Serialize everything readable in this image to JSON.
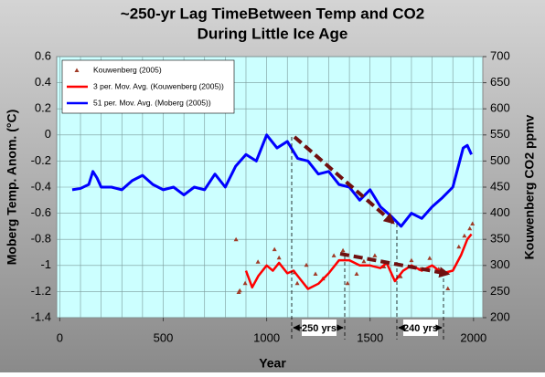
{
  "chart_data": {
    "type": "line",
    "title": [
      "~250-yr Lag TimeBetween Temp and CO2",
      "During Little Ice Age"
    ],
    "x_label": "Year",
    "y_label": "Moberg Temp. Anom. (°C)",
    "y2_label": "Kouwenberg CO2 ppmv",
    "xlim": [
      -15,
      2045
    ],
    "xticks": [
      0,
      500,
      1000,
      1500,
      2000
    ],
    "x_gridlines": [
      0,
      100,
      200,
      300,
      400,
      500,
      600,
      700,
      800,
      900,
      1000,
      1100,
      1200,
      1300,
      1400,
      1500,
      1600,
      1700,
      1800,
      1900,
      2000
    ],
    "ylim": [
      -1.4,
      0.6
    ],
    "yticks": [
      0.6,
      0.4,
      0.2,
      0,
      -0.2,
      -0.4,
      -0.6,
      -0.8,
      -1,
      -1.2,
      -1.4
    ],
    "y2lim": [
      200,
      700
    ],
    "y2ticks": [
      700,
      650,
      600,
      550,
      500,
      450,
      400,
      350,
      300,
      250,
      200
    ],
    "grid": true,
    "legend": "upper left",
    "annotations": [
      "250 yrs",
      "240 yrs"
    ],
    "series": [
      {
        "name": "Kouwenberg (2005)",
        "style": "markers",
        "color": "#a03c28",
        "axis": "y2",
        "x": [
          852,
          865,
          870,
          896,
          958,
          1038,
          1060,
          1135,
          1148,
          1192,
          1236,
          1272,
          1325,
          1369,
          1391,
          1435,
          1470,
          1523,
          1567,
          1647,
          1700,
          1744,
          1788,
          1832,
          1876,
          1929,
          1956,
          1982,
          1995
        ],
        "values": [
          350,
          249,
          252,
          266,
          307,
          331,
          315,
          287,
          266,
          301,
          284,
          275,
          319,
          329,
          266,
          284,
          308,
          319,
          298,
          279,
          310,
          293,
          314,
          293,
          256,
          336,
          357,
          371,
          380
        ]
      },
      {
        "name": "3 per. Mov. Avg. (Kouwenberg (2005))",
        "style": "line",
        "color": "#ff0000",
        "axis": "y2",
        "x": [
          900,
          930,
          960,
          1000,
          1030,
          1060,
          1100,
          1130,
          1160,
          1200,
          1250,
          1300,
          1350,
          1400,
          1450,
          1500,
          1550,
          1580,
          1620,
          1660,
          1700,
          1750,
          1800,
          1850,
          1900,
          1940,
          1970,
          1990
        ],
        "values": [
          290,
          258,
          280,
          300,
          290,
          305,
          285,
          290,
          275,
          255,
          265,
          285,
          310,
          310,
          300,
          300,
          295,
          305,
          270,
          290,
          300,
          290,
          300,
          285,
          290,
          320,
          350,
          360
        ]
      },
      {
        "name": "51 per. Mov. Avg. (Moberg (2005))",
        "style": "line",
        "color": "#0000ff",
        "axis": "y",
        "x": [
          60,
          100,
          140,
          160,
          180,
          200,
          250,
          300,
          350,
          400,
          450,
          500,
          550,
          600,
          650,
          700,
          750,
          800,
          850,
          900,
          950,
          1000,
          1050,
          1100,
          1150,
          1200,
          1250,
          1300,
          1350,
          1400,
          1450,
          1500,
          1550,
          1600,
          1650,
          1700,
          1750,
          1800,
          1850,
          1900,
          1950,
          1970,
          1990
        ],
        "values": [
          -0.42,
          -0.41,
          -0.38,
          -0.28,
          -0.33,
          -0.4,
          -0.4,
          -0.42,
          -0.35,
          -0.31,
          -0.38,
          -0.42,
          -0.4,
          -0.46,
          -0.4,
          -0.42,
          -0.3,
          -0.4,
          -0.24,
          -0.15,
          -0.2,
          0,
          -0.1,
          -0.05,
          -0.18,
          -0.2,
          -0.3,
          -0.28,
          -0.38,
          -0.4,
          -0.5,
          -0.42,
          -0.55,
          -0.62,
          -0.7,
          -0.6,
          -0.64,
          -0.55,
          -0.48,
          -0.4,
          -0.1,
          -0.08,
          -0.15
        ]
      }
    ]
  }
}
